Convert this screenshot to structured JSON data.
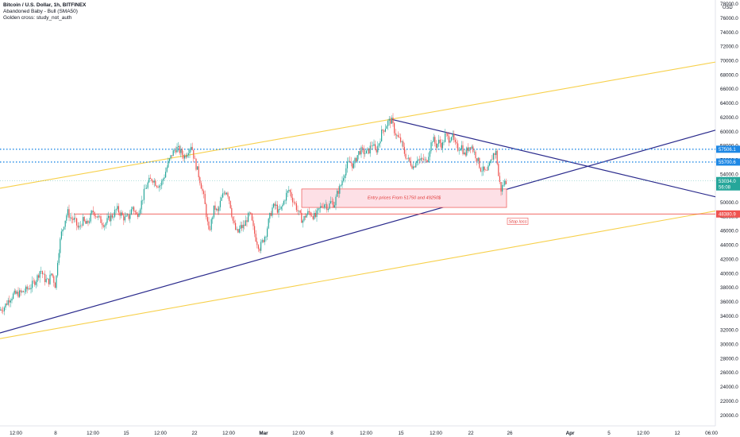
{
  "header": {
    "title": "Bitcoin / U.S. Dollar, 1h, BITFINEX",
    "indicator1": "Abandoned Baby - Bull (SMA50)",
    "indicator2": "Golden cross: study_not_auth",
    "unit": "USD"
  },
  "colors": {
    "up": "#26a69a",
    "down": "#ef5350",
    "channel": "#f7d04a",
    "trendline": "#2a2a8c",
    "level": "#1e88e5",
    "stop": "#ef5350",
    "zone_fill": "#fde0e6",
    "zone_stroke": "#ef5350"
  },
  "chart_data": {
    "type": "candlestick",
    "ylim": [
      19000,
      79000
    ],
    "y_ticks": [
      20000,
      22000,
      24000,
      26000,
      28000,
      30000,
      32000,
      34000,
      36000,
      38000,
      40000,
      42000,
      44000,
      46000,
      48000,
      50000,
      52000,
      54000,
      56000,
      58000,
      60000,
      62000,
      64000,
      66000,
      68000,
      70000,
      72000,
      74000,
      76000,
      78000
    ],
    "x_ticks": [
      {
        "label": "12:00",
        "bold": false
      },
      {
        "label": "8",
        "bold": false
      },
      {
        "label": "12:00",
        "bold": false
      },
      {
        "label": "15",
        "bold": false
      },
      {
        "label": "12:00",
        "bold": false
      },
      {
        "label": "22",
        "bold": false
      },
      {
        "label": "12:00",
        "bold": false
      },
      {
        "label": "Mar",
        "bold": true
      },
      {
        "label": "12:00",
        "bold": false
      },
      {
        "label": "8",
        "bold": false
      },
      {
        "label": "12:00",
        "bold": false
      },
      {
        "label": "15",
        "bold": false
      },
      {
        "label": "12:00",
        "bold": false
      },
      {
        "label": "22",
        "bold": false
      },
      {
        "label": "26",
        "bold": false
      },
      {
        "label": "Apr",
        "bold": true
      },
      {
        "label": "5",
        "bold": false
      },
      {
        "label": "12:00",
        "bold": false
      },
      {
        "label": "12",
        "bold": false
      },
      {
        "label": "06:00",
        "bold": false
      }
    ],
    "price_path": [
      [
        0,
        34800
      ],
      [
        6,
        35200
      ],
      [
        12,
        36300
      ],
      [
        18,
        37000
      ],
      [
        26,
        37200
      ],
      [
        32,
        37500
      ],
      [
        40,
        38200
      ],
      [
        47,
        39200
      ],
      [
        52,
        40600
      ],
      [
        57,
        39200
      ],
      [
        62,
        38800
      ],
      [
        66,
        40100
      ],
      [
        71,
        38100
      ],
      [
        74,
        42500
      ],
      [
        78,
        45500
      ],
      [
        82,
        47200
      ],
      [
        86,
        48700
      ],
      [
        90,
        47800
      ],
      [
        95,
        47500
      ],
      [
        100,
        46200
      ],
      [
        105,
        47500
      ],
      [
        110,
        46800
      ],
      [
        114,
        47700
      ],
      [
        118,
        48800
      ],
      [
        123,
        48100
      ],
      [
        128,
        47400
      ],
      [
        133,
        46900
      ],
      [
        138,
        47700
      ],
      [
        143,
        48200
      ],
      [
        148,
        49100
      ],
      [
        153,
        48400
      ],
      [
        158,
        47700
      ],
      [
        163,
        47900
      ],
      [
        168,
        49400
      ],
      [
        173,
        48100
      ],
      [
        178,
        49600
      ],
      [
        183,
        51600
      ],
      [
        188,
        52900
      ],
      [
        193,
        53400
      ],
      [
        198,
        52600
      ],
      [
        203,
        52400
      ],
      [
        208,
        53800
      ],
      [
        213,
        55600
      ],
      [
        218,
        56900
      ],
      [
        223,
        57700
      ],
      [
        228,
        57200
      ],
      [
        233,
        56400
      ],
      [
        238,
        57400
      ],
      [
        242,
        58200
      ],
      [
        246,
        55900
      ],
      [
        250,
        54400
      ],
      [
        254,
        52600
      ],
      [
        258,
        50500
      ],
      [
        261,
        48200
      ],
      [
        264,
        45700
      ],
      [
        267,
        47200
      ],
      [
        271,
        49400
      ],
      [
        275,
        48500
      ],
      [
        279,
        50200
      ],
      [
        283,
        51400
      ],
      [
        287,
        51700
      ],
      [
        291,
        49700
      ],
      [
        294,
        47600
      ],
      [
        297,
        46300
      ],
      [
        300,
        45600
      ],
      [
        304,
        46500
      ],
      [
        308,
        46600
      ],
      [
        312,
        47700
      ],
      [
        316,
        48400
      ],
      [
        320,
        46300
      ],
      [
        324,
        44600
      ],
      [
        328,
        43600
      ],
      [
        332,
        44600
      ],
      [
        336,
        45700
      ],
      [
        340,
        47700
      ],
      [
        344,
        49200
      ],
      [
        348,
        49600
      ],
      [
        352,
        48600
      ],
      [
        356,
        49300
      ],
      [
        361,
        51000
      ],
      [
        365,
        51800
      ],
      [
        369,
        50600
      ],
      [
        373,
        49700
      ],
      [
        377,
        48500
      ],
      [
        382,
        47400
      ],
      [
        386,
        48200
      ],
      [
        390,
        48600
      ],
      [
        394,
        48300
      ],
      [
        398,
        47900
      ],
      [
        402,
        48800
      ],
      [
        406,
        49500
      ],
      [
        410,
        49900
      ],
      [
        414,
        49300
      ],
      [
        418,
        50100
      ],
      [
        422,
        49700
      ],
      [
        426,
        51400
      ],
      [
        430,
        52300
      ],
      [
        434,
        54000
      ],
      [
        438,
        55200
      ],
      [
        442,
        55800
      ],
      [
        446,
        55100
      ],
      [
        450,
        56400
      ],
      [
        454,
        57300
      ],
      [
        458,
        57200
      ],
      [
        462,
        56900
      ],
      [
        466,
        57400
      ],
      [
        470,
        58400
      ],
      [
        474,
        57100
      ],
      [
        478,
        58300
      ],
      [
        482,
        60000
      ],
      [
        486,
        60600
      ],
      [
        490,
        61400
      ],
      [
        494,
        61600
      ],
      [
        498,
        60000
      ],
      [
        502,
        59100
      ],
      [
        506,
        58600
      ],
      [
        510,
        57100
      ],
      [
        514,
        56100
      ],
      [
        518,
        55600
      ],
      [
        522,
        55000
      ],
      [
        526,
        56300
      ],
      [
        530,
        55800
      ],
      [
        534,
        56100
      ],
      [
        538,
        55600
      ],
      [
        542,
        57500
      ],
      [
        546,
        59100
      ],
      [
        550,
        58000
      ],
      [
        554,
        58600
      ],
      [
        558,
        58000
      ],
      [
        562,
        59600
      ],
      [
        566,
        58900
      ],
      [
        570,
        59600
      ],
      [
        574,
        58100
      ],
      [
        578,
        57600
      ],
      [
        582,
        58100
      ],
      [
        586,
        56600
      ],
      [
        590,
        57600
      ],
      [
        594,
        58200
      ],
      [
        598,
        57100
      ],
      [
        602,
        56200
      ],
      [
        606,
        54800
      ],
      [
        610,
        54500
      ],
      [
        614,
        54100
      ],
      [
        618,
        55300
      ],
      [
        622,
        56800
      ],
      [
        626,
        57100
      ],
      [
        629,
        53500
      ],
      [
        632,
        51800
      ],
      [
        635,
        52600
      ],
      [
        638,
        53000
      ]
    ],
    "lines": [
      {
        "name": "upper-channel",
        "from": [
          0,
          52000
        ],
        "to": [
          901,
          69800
        ],
        "color_key": "channel"
      },
      {
        "name": "lower-channel",
        "from": [
          0,
          30800
        ],
        "to": [
          901,
          48800
        ],
        "color_key": "channel"
      },
      {
        "name": "ascending-trendline",
        "from": [
          0,
          31600
        ],
        "to": [
          901,
          60200
        ],
        "color_key": "trendline"
      },
      {
        "name": "descending-trendline",
        "from": [
          494,
          61700
        ],
        "to": [
          901,
          50800
        ],
        "color_key": "trendline"
      }
    ],
    "levels": [
      {
        "value": 57506.1,
        "label": "57506.1",
        "style": "dotted",
        "color_key": "level",
        "from_x": 0
      },
      {
        "value": 55700.6,
        "label": "55700.6",
        "style": "dotted",
        "color_key": "level",
        "from_x": 0
      },
      {
        "value": 48380.9,
        "label": "48380.9",
        "style": "solid",
        "color_key": "stop",
        "from_x": 93
      }
    ],
    "last_price": {
      "value": 53034.0,
      "label": "53034.0",
      "countdown": "56:08"
    },
    "entry_zone": {
      "x_start": 380,
      "x_end": 638,
      "y_low": 49300,
      "y_high": 51900,
      "label": "Entry prices From 51750 and 49250$"
    },
    "stop_note": {
      "x": 639,
      "y": 47300,
      "label": "Stop loss"
    }
  }
}
